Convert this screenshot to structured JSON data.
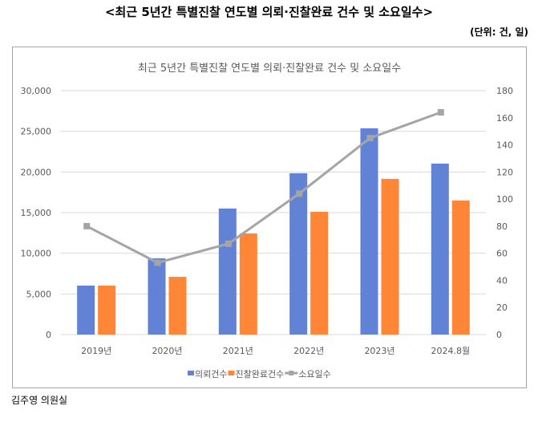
{
  "header": {
    "title": "<최근 5년간 특별진찰 연도별 의뢰·진찰완료 건수 및 소요일수>",
    "unit": "(단위: 건, 일)"
  },
  "footer": {
    "source": "김주영 의원실"
  },
  "chart_data": {
    "type": "bar",
    "title": "최근 5년간 특별진찰 연도별 의뢰·진찰완료 건수 및 소요일수",
    "categories": [
      "2019년",
      "2020년",
      "2021년",
      "2022년",
      "2023년",
      "2024.8월"
    ],
    "series": [
      {
        "name": "의뢰건수",
        "type": "bar",
        "axis": "left",
        "color": "#6282d6",
        "values": [
          6020,
          9380,
          15500,
          19840,
          25370,
          21030
        ]
      },
      {
        "name": "진찰완료건수",
        "type": "bar",
        "axis": "left",
        "color": "#ff8636",
        "values": [
          6020,
          7100,
          12440,
          15100,
          19150,
          16490
        ]
      },
      {
        "name": "소요일수",
        "type": "line",
        "axis": "right",
        "color": "#a5a5a5",
        "values": [
          80,
          53,
          67,
          104,
          145,
          164
        ]
      }
    ],
    "ylim": [
      0,
      30000
    ],
    "yticks": [
      "0",
      "5,000",
      "10,000",
      "15,000",
      "20,000",
      "25,000",
      "30,000"
    ],
    "y2lim": [
      0,
      180
    ],
    "y2ticks": [
      "0",
      "20",
      "40",
      "60",
      "80",
      "100",
      "120",
      "140",
      "160",
      "180"
    ],
    "grid": true,
    "legend": "bottom"
  }
}
